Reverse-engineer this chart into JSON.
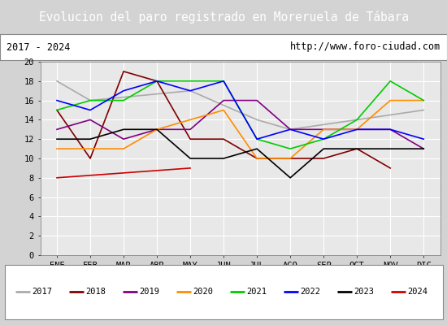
{
  "title": "Evolucion del paro registrado en Moreruela de Tábara",
  "subtitle_left": "2017 - 2024",
  "subtitle_right": "http://www.foro-ciudad.com",
  "months": [
    "ENE",
    "FEB",
    "MAR",
    "ABR",
    "MAY",
    "JUN",
    "JUL",
    "AGO",
    "SEP",
    "OCT",
    "NOV",
    "DIC"
  ],
  "series": {
    "2017": {
      "color": "#aaaaaa",
      "data": [
        18,
        16,
        null,
        null,
        17,
        null,
        14,
        13,
        null,
        null,
        null,
        15
      ]
    },
    "2018": {
      "color": "#800000",
      "data": [
        15,
        10,
        19,
        18,
        12,
        12,
        10,
        10,
        10,
        11,
        9,
        null
      ]
    },
    "2019": {
      "color": "#800080",
      "data": [
        13,
        14,
        12,
        13,
        13,
        16,
        16,
        13,
        13,
        13,
        13,
        11
      ]
    },
    "2020": {
      "color": "#ff8c00",
      "data": [
        11,
        11,
        11,
        13,
        14,
        15,
        10,
        10,
        13,
        13,
        16,
        16
      ]
    },
    "2021": {
      "color": "#00cc00",
      "data": [
        15,
        16,
        16,
        18,
        18,
        18,
        12,
        11,
        12,
        14,
        18,
        16
      ]
    },
    "2022": {
      "color": "#0000ff",
      "data": [
        16,
        15,
        17,
        18,
        17,
        18,
        12,
        13,
        12,
        13,
        13,
        12
      ]
    },
    "2023": {
      "color": "#000000",
      "data": [
        12,
        12,
        13,
        13,
        10,
        10,
        11,
        8,
        11,
        11,
        11,
        11
      ]
    },
    "2024": {
      "color": "#cc0000",
      "data": [
        8,
        null,
        null,
        null,
        9,
        null,
        null,
        null,
        null,
        null,
        null,
        null
      ]
    }
  },
  "ylim": [
    0,
    20
  ],
  "yticks": [
    0,
    2,
    4,
    6,
    8,
    10,
    12,
    14,
    16,
    18,
    20
  ],
  "background_color": "#d3d3d3",
  "plot_bg_color": "#e8e8e8",
  "title_bg_color": "#4472c4",
  "title_color": "#ffffff",
  "title_fontsize": 10.5,
  "subtitle_fontsize": 8.5,
  "tick_fontsize": 7.5,
  "legend_fontsize": 7.5
}
